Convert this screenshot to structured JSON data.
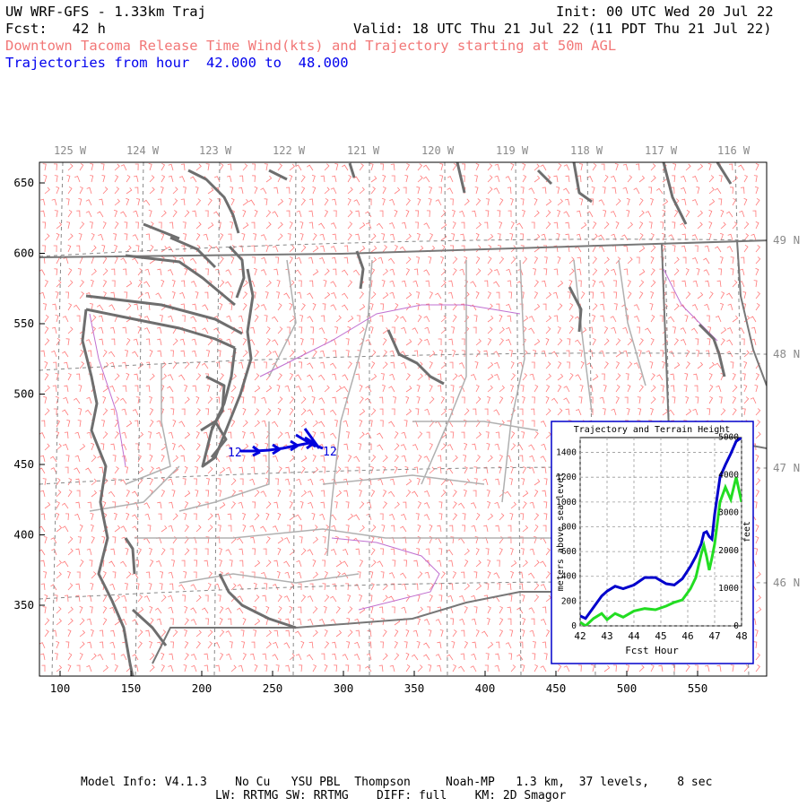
{
  "header": {
    "line1_left": "UW WRF-GFS - 1.33km Traj",
    "line1_right": "Init: 00 UTC Wed 20 Jul 22",
    "line2_left": "Fcst:   42 h",
    "line2_right": "Valid: 18 UTC Thu 21 Jul 22 (11 PDT Thu 21 Jul 22)",
    "line3": "Downtown Tacoma Release Time Wind(kts) and Trajectory starting at 50m AGL",
    "line4": "Trajectories from hour  42.000 to  48.000"
  },
  "map": {
    "x_ticks": [
      "100",
      "150",
      "200",
      "250",
      "300",
      "350",
      "400",
      "450",
      "500",
      "550"
    ],
    "y_ticks": [
      "650",
      "600",
      "550",
      "500",
      "450",
      "400",
      "350"
    ],
    "lon_labels": [
      "125 W",
      "124 W",
      "123 W",
      "122 W",
      "121 W",
      "120 W",
      "119 W",
      "118 W",
      "117 W",
      "116 W"
    ],
    "lat_labels": [
      "49 N",
      "48 N",
      "47 N",
      "46 N"
    ],
    "traj_labels": [
      "12",
      "12"
    ],
    "colors": {
      "barbs": "#ff6b6b",
      "coast": "#6e6e6e",
      "traj": "#0000dd",
      "inset_blue": "#0000cc",
      "inset_green": "#22dd22"
    }
  },
  "chart_data": {
    "type": "line",
    "title": "Trajectory and Terrain Height",
    "xlabel": "Fcst Hour",
    "ylabel": "meters above sea level",
    "ylabel_right": "feet",
    "x_ticks": [
      "42",
      "43",
      "44",
      "45",
      "46",
      "47",
      "48"
    ],
    "y_ticks": [
      "0",
      "200",
      "400",
      "600",
      "800",
      "1000",
      "1200",
      "1400"
    ],
    "y2_ticks": [
      "0",
      "1000",
      "2000",
      "3000",
      "4000",
      "5000"
    ],
    "xlim": [
      42,
      48
    ],
    "ylim": [
      0,
      1520
    ],
    "grid": true,
    "series": [
      {
        "color": "blue",
        "x": [
          42,
          42.2,
          42.5,
          42.8,
          43,
          43.3,
          43.6,
          44,
          44.4,
          44.8,
          45.2,
          45.5,
          45.8,
          46.1,
          46.3,
          46.5,
          46.6,
          46.7,
          46.8,
          46.9,
          47,
          47.2,
          47.4,
          47.6,
          47.8,
          48
        ],
        "values": [
          80,
          60,
          150,
          240,
          280,
          320,
          300,
          330,
          390,
          390,
          340,
          330,
          380,
          480,
          560,
          660,
          750,
          760,
          720,
          700,
          900,
          1200,
          1300,
          1390,
          1490,
          1520
        ]
      },
      {
        "color": "green",
        "x": [
          42,
          42.2,
          42.5,
          42.8,
          43,
          43.3,
          43.6,
          44,
          44.4,
          44.8,
          45.2,
          45.5,
          45.8,
          46.1,
          46.3,
          46.5,
          46.6,
          46.7,
          46.8,
          46.9,
          47,
          47.2,
          47.4,
          47.6,
          47.8,
          48
        ],
        "values": [
          30,
          0,
          60,
          100,
          50,
          100,
          70,
          120,
          140,
          130,
          160,
          190,
          210,
          300,
          390,
          580,
          650,
          560,
          450,
          550,
          660,
          1000,
          1120,
          1020,
          1200,
          1000
        ]
      }
    ]
  },
  "footer": {
    "line1": "Model Info: V4.1.3    No Cu   YSU PBL  Thompson     Noah-MP   1.3 km,  37 levels,    8 sec",
    "line2": "LW: RRTMG SW: RRTMG    DIFF: full    KM: 2D Smagor"
  }
}
